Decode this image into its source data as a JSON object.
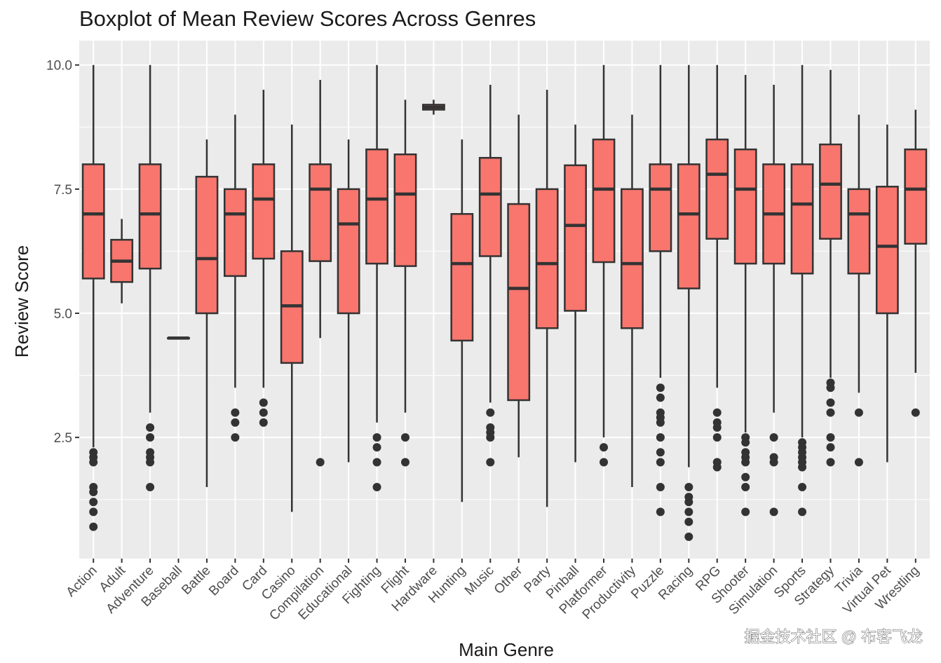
{
  "chart_data": {
    "type": "boxplot",
    "title": "Boxplot of Mean Review Scores Across Genres",
    "xlabel": "Main Genre",
    "ylabel": "Review Score",
    "ylim": [
      0.06,
      10.49
    ],
    "yticks": [
      2.5,
      5.0,
      7.5,
      10.0
    ],
    "ytick_labels": [
      "2.5",
      "5.0",
      "7.5",
      "10.0"
    ],
    "grid": true,
    "legend": "none",
    "colors": {
      "fill": "#F8766D",
      "line": "#333333",
      "panel": "#EBEBEB",
      "grid": "#FFFFFF"
    },
    "categories": [
      "Action",
      "Adult",
      "Adventure",
      "Baseball",
      "Battle",
      "Board",
      "Card",
      "Casino",
      "Compilation",
      "Educational",
      "Fighting",
      "Flight",
      "Hardware",
      "Hunting",
      "Music",
      "Other",
      "Party",
      "Pinball",
      "Platformer",
      "Productivity",
      "Puzzle",
      "Racing",
      "RPG",
      "Shooter",
      "Simulation",
      "Sports",
      "Strategy",
      "Trivia",
      "Virtual Pet",
      "Wrestling"
    ],
    "boxes": [
      {
        "name": "Action",
        "lower": 2.3,
        "q1": 5.7,
        "median": 7.0,
        "q3": 8.0,
        "upper": 10.0,
        "outliers": [
          2.2,
          2.1,
          2.0,
          1.5,
          1.4,
          1.2,
          1.0,
          0.7
        ]
      },
      {
        "name": "Adult",
        "lower": 5.2,
        "q1": 5.63,
        "median": 6.05,
        "q3": 6.48,
        "upper": 6.9,
        "outliers": []
      },
      {
        "name": "Adventure",
        "lower": 3.0,
        "q1": 5.9,
        "median": 7.0,
        "q3": 8.0,
        "upper": 10.0,
        "outliers": [
          2.7,
          2.5,
          2.2,
          2.1,
          2.0,
          1.5
        ]
      },
      {
        "name": "Baseball",
        "lower": 4.5,
        "q1": 4.5,
        "median": 4.5,
        "q3": 4.5,
        "upper": 4.5,
        "outliers": []
      },
      {
        "name": "Battle",
        "lower": 1.5,
        "q1": 5.0,
        "median": 6.1,
        "q3": 7.75,
        "upper": 8.5,
        "outliers": []
      },
      {
        "name": "Board",
        "lower": 3.5,
        "q1": 5.75,
        "median": 7.0,
        "q3": 7.5,
        "upper": 9.0,
        "outliers": [
          3.0,
          2.8,
          2.5
        ]
      },
      {
        "name": "Card",
        "lower": 3.5,
        "q1": 6.1,
        "median": 7.3,
        "q3": 8.0,
        "upper": 9.5,
        "outliers": [
          3.2,
          3.0,
          2.8
        ]
      },
      {
        "name": "Casino",
        "lower": 1.0,
        "q1": 4.0,
        "median": 5.15,
        "q3": 6.25,
        "upper": 8.8,
        "outliers": []
      },
      {
        "name": "Compilation",
        "lower": 4.5,
        "q1": 6.05,
        "median": 7.5,
        "q3": 8.0,
        "upper": 9.7,
        "outliers": [
          2.0
        ]
      },
      {
        "name": "Educational",
        "lower": 2.0,
        "q1": 5.0,
        "median": 6.8,
        "q3": 7.5,
        "upper": 8.5,
        "outliers": []
      },
      {
        "name": "Fighting",
        "lower": 2.8,
        "q1": 6.0,
        "median": 7.3,
        "q3": 8.3,
        "upper": 10.0,
        "outliers": [
          2.5,
          2.3,
          2.0,
          1.5
        ]
      },
      {
        "name": "Flight",
        "lower": 3.0,
        "q1": 5.95,
        "median": 7.4,
        "q3": 8.2,
        "upper": 9.3,
        "outliers": [
          2.5,
          2.0
        ]
      },
      {
        "name": "Hardware",
        "lower": 9.0,
        "q1": 9.1,
        "median": 9.15,
        "q3": 9.2,
        "upper": 9.3,
        "outliers": []
      },
      {
        "name": "Hunting",
        "lower": 1.2,
        "q1": 4.45,
        "median": 6.0,
        "q3": 7.0,
        "upper": 8.5,
        "outliers": []
      },
      {
        "name": "Music",
        "lower": 3.2,
        "q1": 6.15,
        "median": 7.4,
        "q3": 8.13,
        "upper": 9.6,
        "outliers": [
          3.0,
          2.7,
          2.6,
          2.5,
          2.0
        ]
      },
      {
        "name": "Other",
        "lower": 2.1,
        "q1": 3.25,
        "median": 5.5,
        "q3": 7.2,
        "upper": 9.0,
        "outliers": []
      },
      {
        "name": "Party",
        "lower": 1.1,
        "q1": 4.7,
        "median": 6.0,
        "q3": 7.5,
        "upper": 9.5,
        "outliers": []
      },
      {
        "name": "Pinball",
        "lower": 2.0,
        "q1": 5.05,
        "median": 6.77,
        "q3": 7.98,
        "upper": 8.8,
        "outliers": []
      },
      {
        "name": "Platformer",
        "lower": 2.5,
        "q1": 6.03,
        "median": 7.5,
        "q3": 8.5,
        "upper": 10.0,
        "outliers": [
          2.3,
          2.0
        ]
      },
      {
        "name": "Productivity",
        "lower": 1.5,
        "q1": 4.7,
        "median": 6.0,
        "q3": 7.5,
        "upper": 9.0,
        "outliers": []
      },
      {
        "name": "Puzzle",
        "lower": 3.7,
        "q1": 6.25,
        "median": 7.5,
        "q3": 8.0,
        "upper": 10.0,
        "outliers": [
          3.5,
          3.3,
          3.0,
          2.9,
          2.8,
          2.5,
          2.2,
          2.0,
          1.5,
          1.0
        ]
      },
      {
        "name": "Racing",
        "lower": 1.9,
        "q1": 5.5,
        "median": 7.0,
        "q3": 8.0,
        "upper": 10.0,
        "outliers": [
          1.5,
          1.3,
          1.2,
          1.0,
          0.8,
          0.5
        ]
      },
      {
        "name": "RPG",
        "lower": 3.5,
        "q1": 6.5,
        "median": 7.8,
        "q3": 8.5,
        "upper": 10.0,
        "outliers": [
          3.0,
          2.8,
          2.7,
          2.5,
          2.0,
          1.9
        ]
      },
      {
        "name": "Shooter",
        "lower": 2.6,
        "q1": 6.0,
        "median": 7.5,
        "q3": 8.3,
        "upper": 9.8,
        "outliers": [
          2.5,
          2.4,
          2.2,
          2.1,
          2.0,
          1.7,
          1.5,
          1.0
        ]
      },
      {
        "name": "Simulation",
        "lower": 3.0,
        "q1": 6.0,
        "median": 7.0,
        "q3": 8.0,
        "upper": 9.6,
        "outliers": [
          2.5,
          2.1,
          2.0,
          1.0
        ]
      },
      {
        "name": "Sports",
        "lower": 2.5,
        "q1": 5.8,
        "median": 7.2,
        "q3": 8.0,
        "upper": 10.0,
        "outliers": [
          2.4,
          2.3,
          2.2,
          2.1,
          2.0,
          1.9,
          1.5,
          1.0
        ]
      },
      {
        "name": "Strategy",
        "lower": 3.7,
        "q1": 6.5,
        "median": 7.6,
        "q3": 8.4,
        "upper": 9.9,
        "outliers": [
          3.6,
          3.5,
          3.2,
          3.0,
          2.5,
          2.3,
          2.0
        ]
      },
      {
        "name": "Trivia",
        "lower": 3.4,
        "q1": 5.8,
        "median": 7.0,
        "q3": 7.5,
        "upper": 9.0,
        "outliers": [
          3.0,
          2.0
        ]
      },
      {
        "name": "Virtual Pet",
        "lower": 2.0,
        "q1": 5.0,
        "median": 6.35,
        "q3": 7.55,
        "upper": 8.8,
        "outliers": []
      },
      {
        "name": "Wrestling",
        "lower": 3.8,
        "q1": 6.4,
        "median": 7.5,
        "q3": 8.3,
        "upper": 9.1,
        "outliers": [
          3.0
        ]
      }
    ]
  },
  "watermark": "掘金技术社区 @ 布客飞龙"
}
